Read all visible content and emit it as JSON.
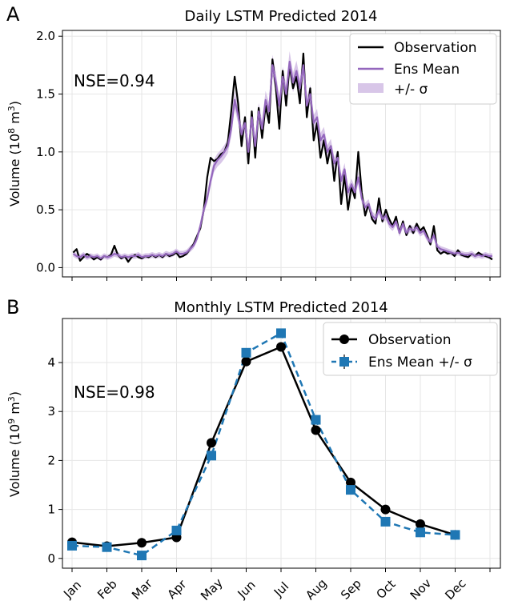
{
  "chart_data": [
    {
      "panel_letter": "A",
      "type": "line",
      "title": "Daily LSTM Predicted 2014",
      "ylabel": "Volume (10",
      "ylabel_exp": "8",
      "ylabel_unit": " m",
      "ylabel_unit_exp": "3",
      "ylabel_close": ")",
      "xlim": [
        0,
        365
      ],
      "ylim": [
        -0.08,
        2.05
      ],
      "yticks": [
        0.0,
        0.5,
        1.0,
        1.5,
        2.0
      ],
      "ytick_labels": [
        "0.0",
        "0.5",
        "1.0",
        "1.5",
        "2.0"
      ],
      "annotation": "NSE=0.94",
      "annotation_color": "#9467bd",
      "legend": [
        {
          "label": "Observation",
          "kind": "line",
          "color": "#000000"
        },
        {
          "label": "Ens Mean",
          "kind": "line",
          "color": "#9467bd"
        },
        {
          "label": "+/- σ",
          "kind": "band",
          "color": "#d8c6e8"
        }
      ],
      "series_sampling": "every 3 days starting day 1",
      "series": [
        {
          "name": "Observation",
          "color": "#000000",
          "values": [
            0.13,
            0.16,
            0.06,
            0.09,
            0.12,
            0.1,
            0.07,
            0.09,
            0.07,
            0.1,
            0.09,
            0.11,
            0.19,
            0.11,
            0.08,
            0.1,
            0.05,
            0.09,
            0.11,
            0.09,
            0.08,
            0.1,
            0.09,
            0.11,
            0.09,
            0.11,
            0.09,
            0.12,
            0.1,
            0.11,
            0.13,
            0.09,
            0.1,
            0.12,
            0.16,
            0.2,
            0.27,
            0.34,
            0.5,
            0.78,
            0.95,
            0.92,
            0.94,
            0.98,
            1.0,
            1.08,
            1.35,
            1.65,
            1.42,
            1.05,
            1.3,
            0.9,
            1.35,
            0.95,
            1.38,
            1.12,
            1.4,
            1.25,
            1.8,
            1.55,
            1.2,
            1.7,
            1.4,
            1.75,
            1.55,
            1.65,
            1.42,
            1.85,
            1.3,
            1.55,
            1.1,
            1.25,
            0.95,
            1.1,
            0.9,
            1.05,
            0.75,
            1.0,
            0.55,
            0.8,
            0.5,
            0.7,
            0.6,
            1.0,
            0.65,
            0.45,
            0.55,
            0.42,
            0.38,
            0.6,
            0.4,
            0.5,
            0.42,
            0.36,
            0.44,
            0.3,
            0.4,
            0.28,
            0.36,
            0.3,
            0.38,
            0.32,
            0.35,
            0.28,
            0.2,
            0.36,
            0.15,
            0.12,
            0.14,
            0.12,
            0.13,
            0.1,
            0.15,
            0.11,
            0.1,
            0.09,
            0.12,
            0.1,
            0.13,
            0.11,
            0.1,
            0.09,
            0.07
          ]
        },
        {
          "name": "Ens Mean",
          "color": "#9467bd",
          "values": [
            0.12,
            0.1,
            0.09,
            0.11,
            0.09,
            0.1,
            0.09,
            0.1,
            0.08,
            0.1,
            0.09,
            0.1,
            0.12,
            0.11,
            0.09,
            0.1,
            0.09,
            0.1,
            0.1,
            0.11,
            0.09,
            0.1,
            0.1,
            0.11,
            0.1,
            0.11,
            0.1,
            0.12,
            0.11,
            0.12,
            0.14,
            0.12,
            0.12,
            0.13,
            0.16,
            0.19,
            0.25,
            0.36,
            0.5,
            0.6,
            0.75,
            0.88,
            0.93,
            0.96,
            1.0,
            1.05,
            1.2,
            1.45,
            1.32,
            1.15,
            1.25,
            1.0,
            1.3,
            1.05,
            1.35,
            1.2,
            1.45,
            1.35,
            1.75,
            1.6,
            1.4,
            1.65,
            1.5,
            1.78,
            1.6,
            1.7,
            1.55,
            1.75,
            1.4,
            1.5,
            1.25,
            1.3,
            1.1,
            1.15,
            1.0,
            1.05,
            0.9,
            0.95,
            0.75,
            0.85,
            0.65,
            0.72,
            0.65,
            0.78,
            0.6,
            0.52,
            0.55,
            0.45,
            0.42,
            0.5,
            0.42,
            0.45,
            0.38,
            0.35,
            0.4,
            0.3,
            0.38,
            0.3,
            0.34,
            0.32,
            0.35,
            0.3,
            0.32,
            0.26,
            0.22,
            0.28,
            0.18,
            0.16,
            0.15,
            0.14,
            0.13,
            0.12,
            0.13,
            0.12,
            0.11,
            0.11,
            0.12,
            0.1,
            0.11,
            0.1,
            0.11,
            0.1,
            0.1
          ]
        }
      ],
      "band_sigma": 0.04
    },
    {
      "panel_letter": "B",
      "type": "line",
      "title": "Monthly LSTM Predicted 2014",
      "ylabel": "Volume (10",
      "ylabel_exp": "9",
      "ylabel_unit": " m",
      "ylabel_unit_exp": "3",
      "ylabel_close": ")",
      "categories": [
        "Jan",
        "Feb",
        "Mar",
        "Apr",
        "May",
        "Jun",
        "Jul",
        "Aug",
        "Sep",
        "Oct",
        "Nov",
        "Dec"
      ],
      "ylim": [
        -0.2,
        4.9
      ],
      "yticks": [
        0,
        1,
        2,
        3,
        4
      ],
      "ytick_labels": [
        "0",
        "1",
        "2",
        "3",
        "4"
      ],
      "annotation": "NSE=0.98",
      "annotation_color": "#1f77b4",
      "legend": [
        {
          "label": "Observation",
          "kind": "line-marker-circle",
          "color": "#000000"
        },
        {
          "label": "Ens Mean +/- σ",
          "kind": "dashed-marker-square",
          "color": "#1f77b4"
        }
      ],
      "series": [
        {
          "name": "Observation",
          "color": "#000000",
          "values": [
            0.33,
            0.25,
            0.32,
            0.43,
            2.36,
            4.02,
            4.32,
            2.62,
            1.55,
            1.0,
            0.7,
            0.48
          ]
        },
        {
          "name": "Ens Mean",
          "color": "#1f77b4",
          "values": [
            0.26,
            0.23,
            0.06,
            0.57,
            2.1,
            4.2,
            4.6,
            2.83,
            1.4,
            0.75,
            0.53,
            0.48
          ]
        }
      ]
    }
  ]
}
